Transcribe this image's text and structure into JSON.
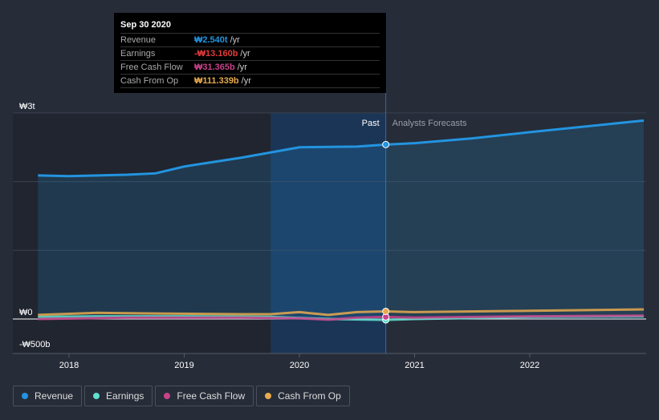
{
  "tooltip": {
    "date": "Sep 30 2020",
    "rows": [
      {
        "label": "Revenue",
        "value": "₩2.540t",
        "unit": "/yr",
        "color": "#2394df"
      },
      {
        "label": "Earnings",
        "value": "-₩13.160b",
        "unit": "/yr",
        "color": "#e6393a"
      },
      {
        "label": "Free Cash Flow",
        "value": "₩31.365b",
        "unit": "/yr",
        "color": "#c8428a"
      },
      {
        "label": "Cash From Op",
        "value": "₩111.339b",
        "unit": "/yr",
        "color": "#e8aa4e"
      }
    ]
  },
  "chart_data": {
    "type": "line",
    "ylim": [
      -0.5,
      3
    ],
    "y_unit": "trillion KRW",
    "yticks": [
      {
        "v": 3,
        "label": "₩3t"
      },
      {
        "v": 0,
        "label": "₩0"
      },
      {
        "v": -0.5,
        "label": "-₩500b"
      }
    ],
    "xticks": [
      {
        "v": 2018,
        "label": "2018"
      },
      {
        "v": 2019,
        "label": "2019"
      },
      {
        "v": 2020,
        "label": "2020"
      },
      {
        "v": 2021,
        "label": "2021"
      },
      {
        "v": 2022,
        "label": "2022"
      }
    ],
    "xlim": [
      2017.47,
      2022.99
    ],
    "past_label": "Past",
    "forecast_label": "Analysts Forecasts",
    "past_end": 2020.75,
    "highlight_start": 2019.75,
    "series": [
      {
        "name": "Revenue",
        "color": "#2394df",
        "points": [
          [
            2017.73,
            2.09
          ],
          [
            2018,
            2.08
          ],
          [
            2018.5,
            2.1
          ],
          [
            2018.75,
            2.12
          ],
          [
            2019,
            2.22
          ],
          [
            2019.5,
            2.35
          ],
          [
            2020,
            2.5
          ],
          [
            2020.5,
            2.51
          ],
          [
            2020.75,
            2.54
          ],
          [
            2021,
            2.56
          ],
          [
            2021.5,
            2.63
          ],
          [
            2022,
            2.72
          ],
          [
            2022.99,
            2.89
          ]
        ]
      },
      {
        "name": "Earnings",
        "color": "#5ee0cf",
        "points": [
          [
            2017.73,
            0.03
          ],
          [
            2018.25,
            0.04
          ],
          [
            2019,
            0.04
          ],
          [
            2019.75,
            0.03
          ],
          [
            2020.25,
            0.0
          ],
          [
            2020.75,
            -0.013
          ],
          [
            2021,
            0.0
          ],
          [
            2022,
            0.03
          ],
          [
            2022.99,
            0.04
          ]
        ]
      },
      {
        "name": "Free Cash Flow",
        "color": "#c8428a",
        "points": [
          [
            2017.73,
            0.0
          ],
          [
            2018.5,
            0.02
          ],
          [
            2019.5,
            0.02
          ],
          [
            2020,
            0.01
          ],
          [
            2020.25,
            -0.01
          ],
          [
            2020.5,
            0.02
          ],
          [
            2020.75,
            0.031
          ],
          [
            2021,
            0.02
          ],
          [
            2022,
            0.04
          ],
          [
            2022.99,
            0.05
          ]
        ]
      },
      {
        "name": "Cash From Op",
        "color": "#e8aa4e",
        "points": [
          [
            2017.73,
            0.06
          ],
          [
            2018.25,
            0.09
          ],
          [
            2018.75,
            0.08
          ],
          [
            2019.5,
            0.07
          ],
          [
            2019.75,
            0.07
          ],
          [
            2020,
            0.1
          ],
          [
            2020.25,
            0.06
          ],
          [
            2020.5,
            0.1
          ],
          [
            2020.75,
            0.111
          ],
          [
            2021,
            0.1
          ],
          [
            2022,
            0.12
          ],
          [
            2022.99,
            0.14
          ]
        ]
      }
    ]
  },
  "legend": [
    {
      "label": "Revenue",
      "color": "#2394df"
    },
    {
      "label": "Earnings",
      "color": "#5ee0cf"
    },
    {
      "label": "Free Cash Flow",
      "color": "#c8428a"
    },
    {
      "label": "Cash From Op",
      "color": "#e8aa4e"
    }
  ]
}
